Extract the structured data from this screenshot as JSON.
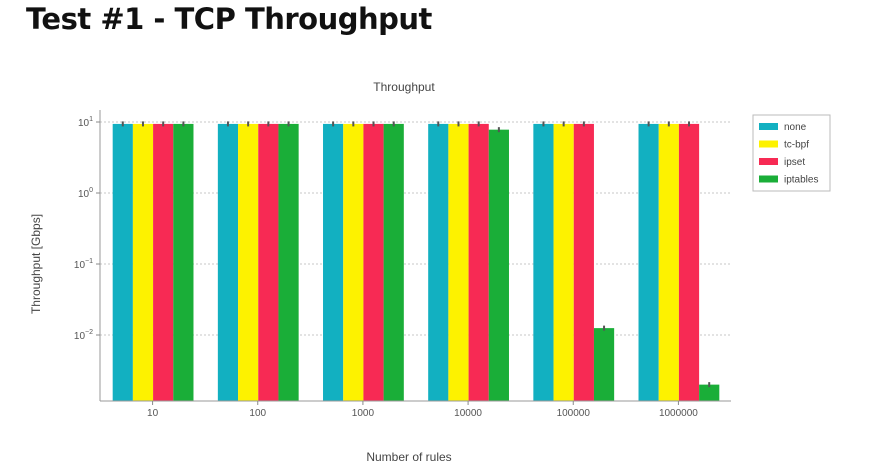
{
  "slide": {
    "title": "Test #1 - TCP Throughput"
  },
  "chart_data": {
    "type": "bar",
    "title": "Throughput",
    "xlabel": "Number of rules",
    "ylabel": "Throughput [Gbps]",
    "yscale": "log",
    "ylim": [
      0.0013,
      14
    ],
    "yticks": [
      {
        "value": 10,
        "base": "10",
        "exp": "1"
      },
      {
        "value": 1,
        "base": "10",
        "exp": "0"
      },
      {
        "value": 0.1,
        "base": "10",
        "exp": "−1"
      },
      {
        "value": 0.01,
        "base": "10",
        "exp": "−2"
      }
    ],
    "grid": true,
    "legend_position": "top-right",
    "categories": [
      "10",
      "100",
      "1000",
      "10000",
      "100000",
      "1000000"
    ],
    "series": [
      {
        "name": "none",
        "color": "#12b0c1",
        "values": [
          9.4,
          9.4,
          9.4,
          9.4,
          9.4,
          9.4
        ]
      },
      {
        "name": "tc-bpf",
        "color": "#fdf200",
        "values": [
          9.4,
          9.4,
          9.4,
          9.4,
          9.4,
          9.4
        ]
      },
      {
        "name": "ipset",
        "color": "#f72a54",
        "values": [
          9.4,
          9.4,
          9.4,
          9.4,
          9.4,
          9.4
        ]
      },
      {
        "name": "iptables",
        "color": "#1aae38",
        "values": [
          9.4,
          9.4,
          9.4,
          7.8,
          0.0125,
          0.002
        ]
      }
    ]
  }
}
